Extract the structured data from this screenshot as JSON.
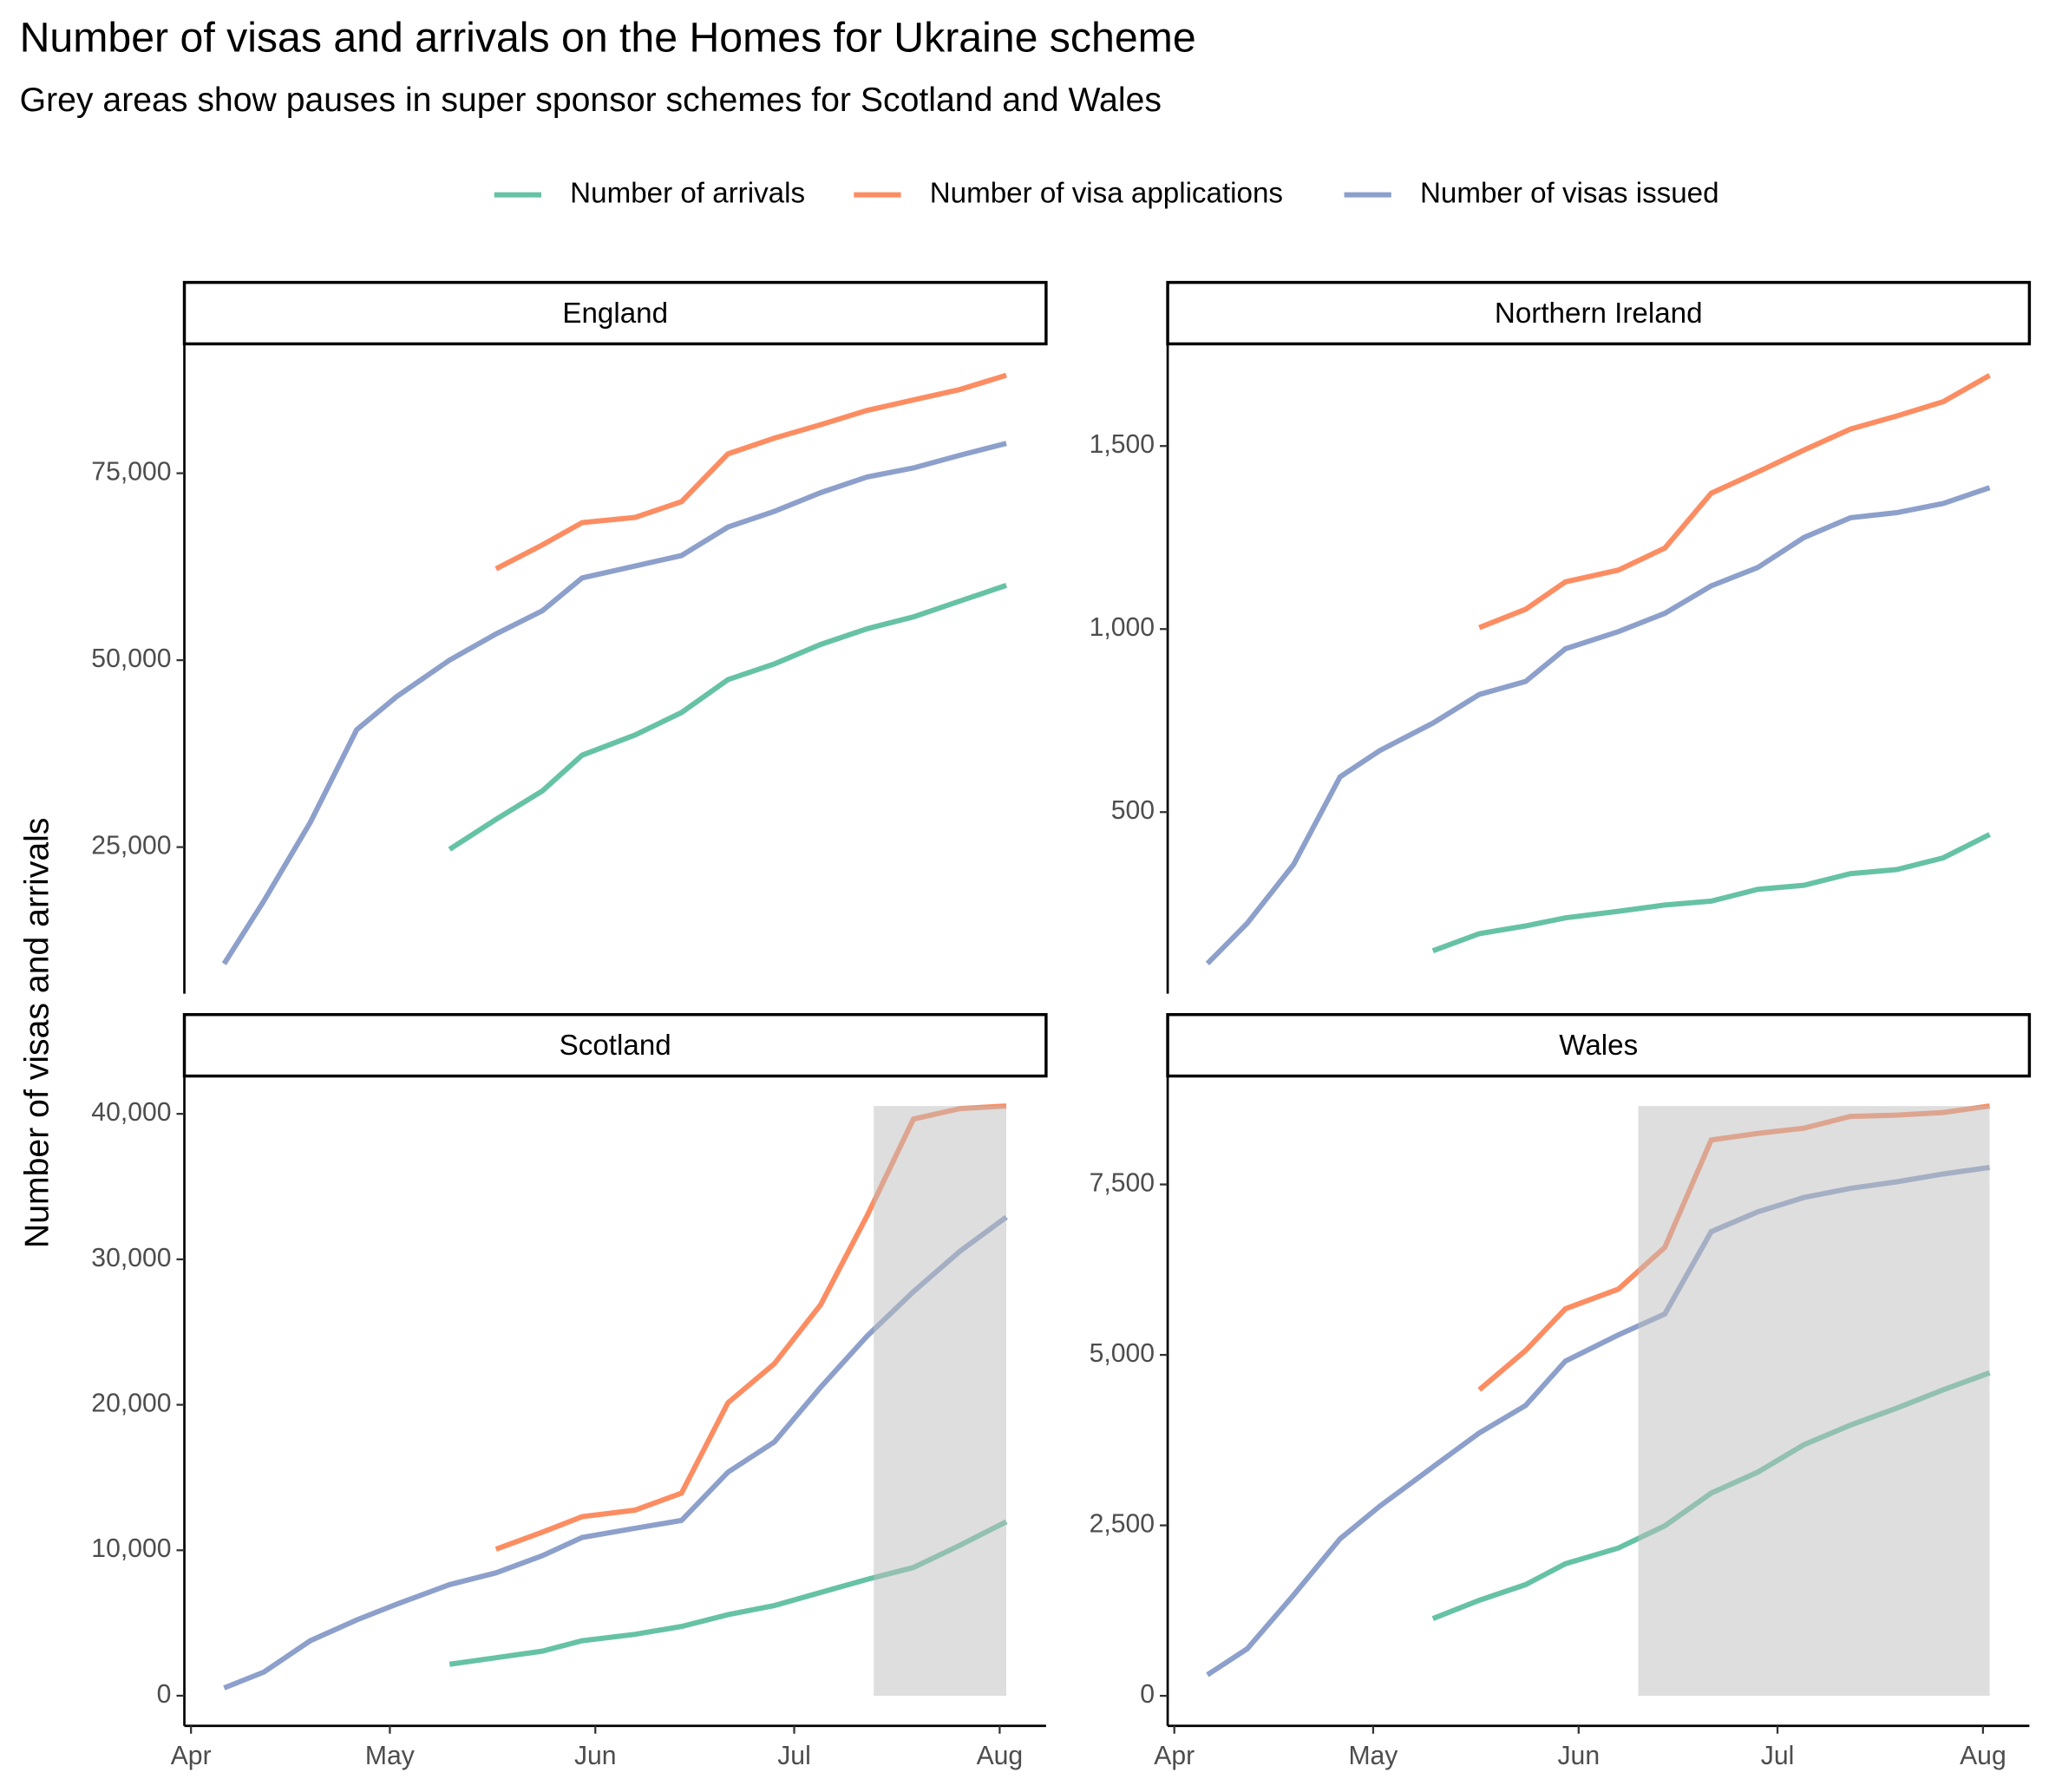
{
  "title": "Number of visas and arrivals on the Homes for Ukraine scheme",
  "subtitle": "Grey areas show pauses in super sponsor schemes for Scotland and Wales",
  "y_label": "Number of visas and arrivals",
  "chart_data": [
    {
      "type": "line",
      "title": "England",
      "x": [
        5,
        11,
        18,
        25,
        31,
        39,
        46,
        53,
        59,
        67,
        74,
        81,
        88,
        95,
        102,
        109,
        116,
        123
      ],
      "xlim": [
        -1,
        129
      ],
      "ylim": [
        5400,
        92300
      ],
      "yticks": [
        {
          "value": 25000,
          "label": "25,000"
        },
        {
          "value": 50000,
          "label": "50,000"
        },
        {
          "value": 75000,
          "label": "75,000"
        }
      ],
      "series": [
        {
          "name": "Number of arrivals",
          "color": "#66c2a5",
          "values": [
            null,
            null,
            null,
            null,
            null,
            24700,
            28700,
            32500,
            37300,
            40000,
            43000,
            47400,
            49500,
            52100,
            54200,
            55800,
            57900,
            60000
          ]
        },
        {
          "name": "Number of visa applications",
          "color": "#fc8d62",
          "values": [
            null,
            null,
            null,
            null,
            null,
            null,
            62200,
            65400,
            68400,
            69100,
            71200,
            77600,
            79700,
            81500,
            83400,
            84800,
            86200,
            88100
          ]
        },
        {
          "name": "Number of visas issued",
          "color": "#8da0cb",
          "values": [
            9400,
            17800,
            28300,
            40700,
            45100,
            50000,
            53500,
            56600,
            61000,
            62600,
            64000,
            67800,
            69900,
            72400,
            74500,
            75700,
            77400,
            79000
          ]
        }
      ]
    },
    {
      "type": "line",
      "title": "Northern Ireland",
      "x": [
        5,
        11,
        18,
        25,
        31,
        39,
        46,
        53,
        59,
        67,
        74,
        81,
        88,
        95,
        102,
        109,
        116,
        123
      ],
      "xlim": [
        -1,
        129
      ],
      "ylim": [
        4,
        1779
      ],
      "yticks": [
        500,
        {
          "value": 1000,
          "label": "1,000"
        },
        {
          "value": 1500,
          "label": "1,500"
        }
      ],
      "series": [
        {
          "name": "Number of arrivals",
          "color": "#66c2a5",
          "values": [
            null,
            null,
            null,
            null,
            null,
            121,
            168,
            189,
            211,
            229,
            246,
            257,
            289,
            300,
            332,
            343,
            375,
            439
          ]
        },
        {
          "name": "Number of visa applications",
          "color": "#fc8d62",
          "values": [
            null,
            null,
            null,
            null,
            null,
            null,
            1004,
            1054,
            1129,
            1161,
            1221,
            1371,
            1429,
            1489,
            1546,
            1582,
            1621,
            1693
          ]
        },
        {
          "name": "Number of visas issued",
          "color": "#8da0cb",
          "values": [
            86,
            196,
            357,
            596,
            668,
            743,
            821,
            857,
            946,
            993,
            1043,
            1118,
            1168,
            1250,
            1304,
            1318,
            1343,
            1386
          ]
        }
      ]
    },
    {
      "type": "line",
      "title": "Scotland",
      "x": [
        5,
        11,
        18,
        25,
        31,
        39,
        46,
        53,
        59,
        67,
        74,
        81,
        88,
        95,
        102,
        109,
        116,
        123
      ],
      "xlim": [
        -1,
        129
      ],
      "ylim": [
        -2070,
        42600
      ],
      "xticks": [
        {
          "value": 0,
          "label": "Apr"
        },
        {
          "value": 30,
          "label": "May"
        },
        {
          "value": 61,
          "label": "Jun"
        },
        {
          "value": 91,
          "label": "Jul"
        },
        {
          "value": 122,
          "label": "Aug"
        }
      ],
      "yticks": [
        0,
        {
          "value": 10000,
          "label": "10,000"
        },
        {
          "value": 20000,
          "label": "20,000"
        },
        {
          "value": 30000,
          "label": "30,000"
        },
        {
          "value": 40000,
          "label": "40,000"
        }
      ],
      "pause_x": [
        103,
        123
      ],
      "series": [
        {
          "name": "Number of arrivals",
          "color": "#66c2a5",
          "values": [
            null,
            null,
            null,
            null,
            null,
            2160,
            2610,
            3060,
            3780,
            4220,
            4760,
            5570,
            6200,
            7100,
            8000,
            8810,
            10340,
            11960
          ]
        },
        {
          "name": "Number of visa applications",
          "color": "#fc8d62",
          "values": [
            null,
            null,
            null,
            null,
            null,
            null,
            10070,
            11240,
            12310,
            12760,
            13930,
            20140,
            22830,
            26880,
            32990,
            39640,
            40360,
            40540
          ]
        },
        {
          "name": "Number of visas issued",
          "color": "#8da0cb",
          "values": [
            540,
            1620,
            3780,
            5210,
            6290,
            7640,
            8450,
            9620,
            10880,
            11510,
            12050,
            15370,
            17440,
            21210,
            24720,
            27780,
            30560,
            32900
          ]
        }
      ]
    },
    {
      "type": "line",
      "title": "Wales",
      "x": [
        5,
        11,
        18,
        25,
        31,
        39,
        46,
        53,
        59,
        67,
        74,
        81,
        88,
        95,
        102,
        109,
        116,
        123
      ],
      "xlim": [
        -1,
        129
      ],
      "ylim": [
        -440,
        9090
      ],
      "xticks": [
        {
          "value": 0,
          "label": "Apr"
        },
        {
          "value": 30,
          "label": "May"
        },
        {
          "value": 61,
          "label": "Jun"
        },
        {
          "value": 91,
          "label": "Jul"
        },
        {
          "value": 122,
          "label": "Aug"
        }
      ],
      "yticks": [
        0,
        {
          "value": 2500,
          "label": "2,500"
        },
        {
          "value": 5000,
          "label": "5,000"
        },
        {
          "value": 7500,
          "label": "7,500"
        }
      ],
      "pause_x": [
        70,
        123
      ],
      "series": [
        {
          "name": "Number of arrivals",
          "color": "#66c2a5",
          "values": [
            null,
            null,
            null,
            null,
            null,
            1132,
            1400,
            1630,
            1937,
            2167,
            2493,
            2973,
            3280,
            3683,
            3970,
            4220,
            4488,
            4737
          ]
        },
        {
          "name": "Number of visa applications",
          "color": "#fc8d62",
          "values": [
            null,
            null,
            null,
            null,
            null,
            null,
            4488,
            5064,
            5677,
            5965,
            6579,
            8152,
            8248,
            8325,
            8497,
            8516,
            8555,
            8650
          ]
        },
        {
          "name": "Number of visas issued",
          "color": "#8da0cb",
          "values": [
            307,
            690,
            1477,
            2302,
            2781,
            3357,
            3855,
            4258,
            4910,
            5294,
            5601,
            6809,
            7097,
            7308,
            7442,
            7538,
            7653,
            7749
          ]
        }
      ]
    }
  ]
}
